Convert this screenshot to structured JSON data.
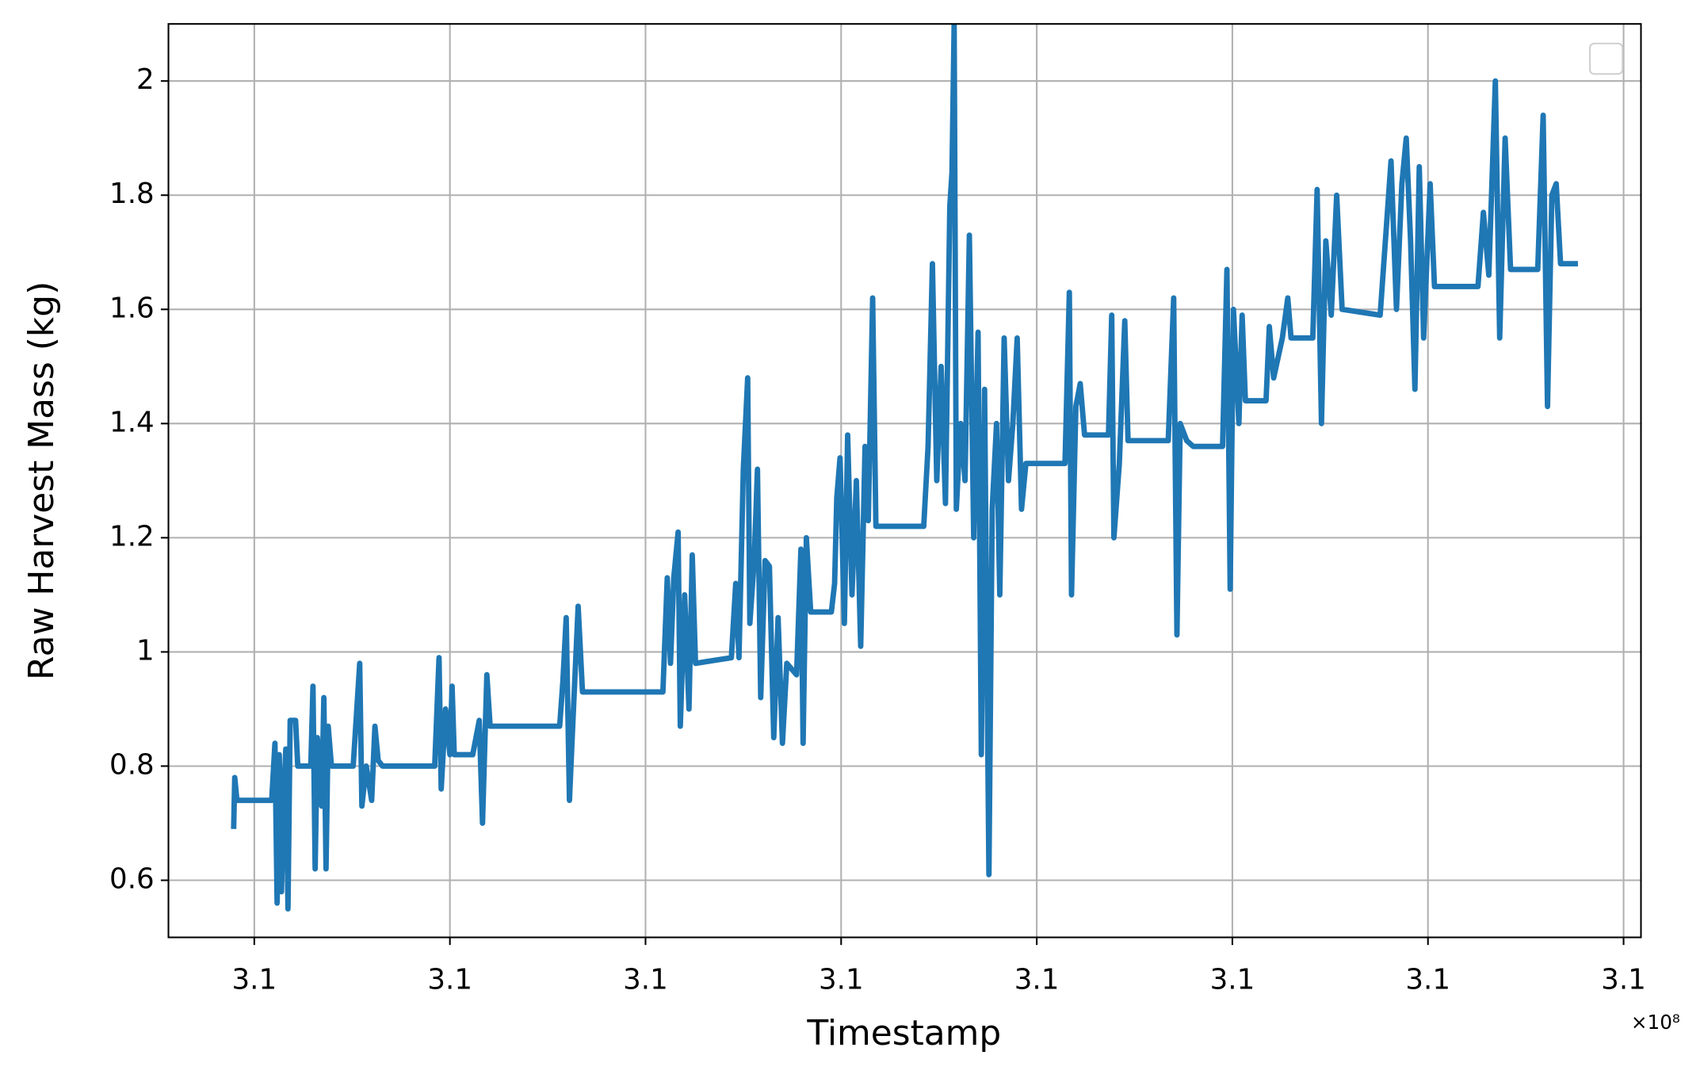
{
  "chart_data": {
    "type": "line",
    "xlabel": "Timestamp",
    "ylabel": "Raw Harvest Mass (kg)",
    "x_offset_label": "×10⁸",
    "x": [
      309981000,
      309982000,
      309984000,
      310016000,
      310019000,
      310021000,
      310023000,
      310025000,
      310027000,
      310029000,
      310031000,
      310033000,
      310038000,
      310040000,
      310052000,
      310054000,
      310056000,
      310058000,
      310062000,
      310064000,
      310066000,
      310068000,
      310071000,
      310091000,
      310097000,
      310099000,
      310103000,
      310108000,
      310111000,
      310114000,
      310118000,
      310166000,
      310170000,
      310172000,
      310176000,
      310180000,
      310182000,
      310184000,
      310201000,
      310207000,
      310210000,
      310214000,
      310217000,
      310281000,
      310284000,
      310287000,
      310290000,
      310293000,
      310298000,
      310302000,
      310376000,
      310380000,
      310383000,
      310386000,
      310390000,
      310392000,
      310396000,
      310400000,
      310403000,
      310406000,
      310439000,
      310443000,
      310446000,
      310450000,
      310454000,
      310456000,
      310460000,
      310463000,
      310466000,
      310470000,
      310474000,
      310478000,
      310482000,
      310486000,
      310490000,
      310499000,
      310503000,
      310505000,
      310508000,
      310512000,
      310531000,
      310534000,
      310536000,
      310539000,
      310543000,
      310546000,
      310550000,
      310554000,
      310558000,
      310562000,
      310565000,
      310569000,
      310572000,
      310616000,
      310620000,
      310624000,
      310628000,
      310632000,
      310636000,
      310640000,
      310642000,
      310644000,
      310646000,
      310650000,
      310654000,
      310658000,
      310662000,
      310666000,
      310669000,
      310672000,
      310676000,
      310679000,
      310683000,
      310686000,
      310690000,
      310694000,
      310698000,
      310702000,
      310706000,
      310710000,
      310746000,
      310750000,
      310752000,
      310756000,
      310760000,
      310764000,
      310786000,
      310789000,
      310791000,
      310796000,
      310801000,
      310804000,
      310841000,
      310846000,
      310849000,
      310852000,
      310858000,
      310864000,
      310891000,
      310895000,
      310898000,
      310901000,
      310906000,
      310909000,
      310912000,
      310931000,
      310934000,
      310938000,
      310946000,
      310951000,
      310954000,
      310974000,
      310978000,
      310982000,
      310986000,
      310991000,
      310996000,
      311001000,
      311036000,
      311046000,
      311051000,
      311056000,
      311060000,
      311064000,
      311068000,
      311072000,
      311076000,
      311082000,
      311086000,
      311126000,
      311131000,
      311136000,
      311142000,
      311146000,
      311151000,
      311156000,
      311181000,
      311186000,
      311190000,
      311194000,
      311198000,
      311202000,
      311218000
    ],
    "series": [
      {
        "color": "#1f77b4",
        "values": [
          0.69,
          0.78,
          0.74,
          0.74,
          0.84,
          0.56,
          0.82,
          0.58,
          0.74,
          0.83,
          0.55,
          0.88,
          0.88,
          0.8,
          0.8,
          0.94,
          0.62,
          0.85,
          0.73,
          0.92,
          0.62,
          0.87,
          0.8,
          0.8,
          0.98,
          0.73,
          0.8,
          0.74,
          0.87,
          0.81,
          0.8,
          0.8,
          0.99,
          0.76,
          0.9,
          0.82,
          0.94,
          0.82,
          0.82,
          0.88,
          0.7,
          0.96,
          0.87,
          0.87,
          0.95,
          1.06,
          0.74,
          0.87,
          1.08,
          0.93,
          0.93,
          1.13,
          0.98,
          1.13,
          1.21,
          0.87,
          1.1,
          0.9,
          1.17,
          0.98,
          0.99,
          1.12,
          0.99,
          1.32,
          1.48,
          1.05,
          1.16,
          1.32,
          0.92,
          1.16,
          1.15,
          0.85,
          1.06,
          0.84,
          0.98,
          0.96,
          1.18,
          0.84,
          1.2,
          1.07,
          1.07,
          1.12,
          1.27,
          1.34,
          1.05,
          1.38,
          1.1,
          1.3,
          1.01,
          1.36,
          1.23,
          1.62,
          1.22,
          1.22,
          1.36,
          1.68,
          1.3,
          1.5,
          1.26,
          1.78,
          1.84,
          2.1,
          1.25,
          1.4,
          1.3,
          1.73,
          1.2,
          1.56,
          0.82,
          1.46,
          0.61,
          1.25,
          1.4,
          1.1,
          1.55,
          1.3,
          1.4,
          1.55,
          1.25,
          1.33,
          1.33,
          1.63,
          1.1,
          1.43,
          1.47,
          1.38,
          1.38,
          1.59,
          1.2,
          1.33,
          1.58,
          1.37,
          1.37,
          1.62,
          1.03,
          1.4,
          1.37,
          1.36,
          1.36,
          1.67,
          1.11,
          1.6,
          1.4,
          1.59,
          1.44,
          1.44,
          1.57,
          1.48,
          1.55,
          1.62,
          1.55,
          1.55,
          1.81,
          1.4,
          1.72,
          1.59,
          1.8,
          1.6,
          1.59,
          1.86,
          1.6,
          1.82,
          1.9,
          1.72,
          1.46,
          1.85,
          1.55,
          1.82,
          1.64,
          1.64,
          1.77,
          1.66,
          2.0,
          1.55,
          1.9,
          1.67,
          1.67,
          1.94,
          1.43,
          1.8,
          1.82,
          1.68,
          1.68
        ]
      }
    ],
    "xlim": [
      309921000,
      311276000
    ],
    "xticks": [
      {
        "value": 310000000,
        "label": "3.1"
      },
      {
        "value": 310180000,
        "label": "3.1"
      },
      {
        "value": 310360000,
        "label": "3.1"
      },
      {
        "value": 310540000,
        "label": "3.1"
      },
      {
        "value": 310720000,
        "label": "3.1"
      },
      {
        "value": 310900000,
        "label": "3.1"
      },
      {
        "value": 311080000,
        "label": "3.1"
      },
      {
        "value": 311260000,
        "label": "3.1"
      }
    ],
    "ylim": [
      0.5,
      2.1
    ],
    "yticks": [
      0.6,
      0.8,
      1.0,
      1.2,
      1.4,
      1.6,
      1.8,
      2.0
    ],
    "grid": true,
    "legend": "upper-right"
  }
}
